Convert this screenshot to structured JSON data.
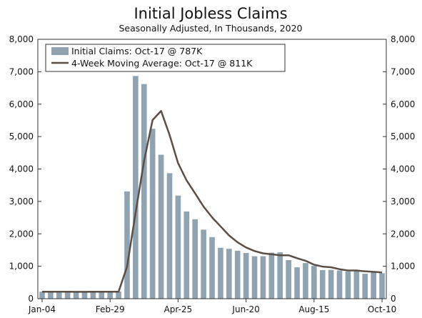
{
  "chart_data": {
    "type": "bar",
    "title": "Initial Jobless Claims",
    "subtitle": "Seasonally Adjusted, In Thousands, 2020",
    "ylim": [
      0,
      8000
    ],
    "yticks": [
      "0",
      "1,000",
      "2,000",
      "3,000",
      "4,000",
      "5,000",
      "6,000",
      "7,000",
      "8,000"
    ],
    "x_tick_labels": [
      {
        "index": 0,
        "label": "Jan-04"
      },
      {
        "index": 8,
        "label": "Feb-29"
      },
      {
        "index": 16,
        "label": "Apr-25"
      },
      {
        "index": 24,
        "label": "Jun-20"
      },
      {
        "index": 32,
        "label": "Aug-15"
      },
      {
        "index": 40,
        "label": "Oct-10"
      }
    ],
    "grid": false,
    "legend_position": "top-left",
    "series": [
      {
        "name": "Initial Claims: Oct-17 @ 787K",
        "type": "bar",
        "color": "#8fa3b1",
        "values": [
          215,
          210,
          220,
          215,
          210,
          215,
          220,
          215,
          215,
          220,
          3310,
          6870,
          6620,
          5240,
          4440,
          3870,
          3180,
          2690,
          2450,
          2130,
          1900,
          1570,
          1540,
          1480,
          1410,
          1310,
          1310,
          1420,
          1430,
          1190,
          970,
          1100,
          1010,
          880,
          890,
          870,
          840,
          880,
          770,
          820,
          787
        ]
      },
      {
        "name": "4-Week Moving Average: Oct-17 @ 811K",
        "type": "line",
        "color": "#5b4e45",
        "values": [
          215,
          215,
          215,
          215,
          213,
          213,
          215,
          216,
          216,
          216,
          990,
          2650,
          4250,
          5510,
          5790,
          5050,
          4180,
          3650,
          3250,
          2840,
          2510,
          2230,
          1950,
          1740,
          1580,
          1470,
          1400,
          1370,
          1340,
          1340,
          1250,
          1170,
          1050,
          990,
          970,
          910,
          870,
          870,
          845,
          830,
          811
        ]
      }
    ]
  }
}
